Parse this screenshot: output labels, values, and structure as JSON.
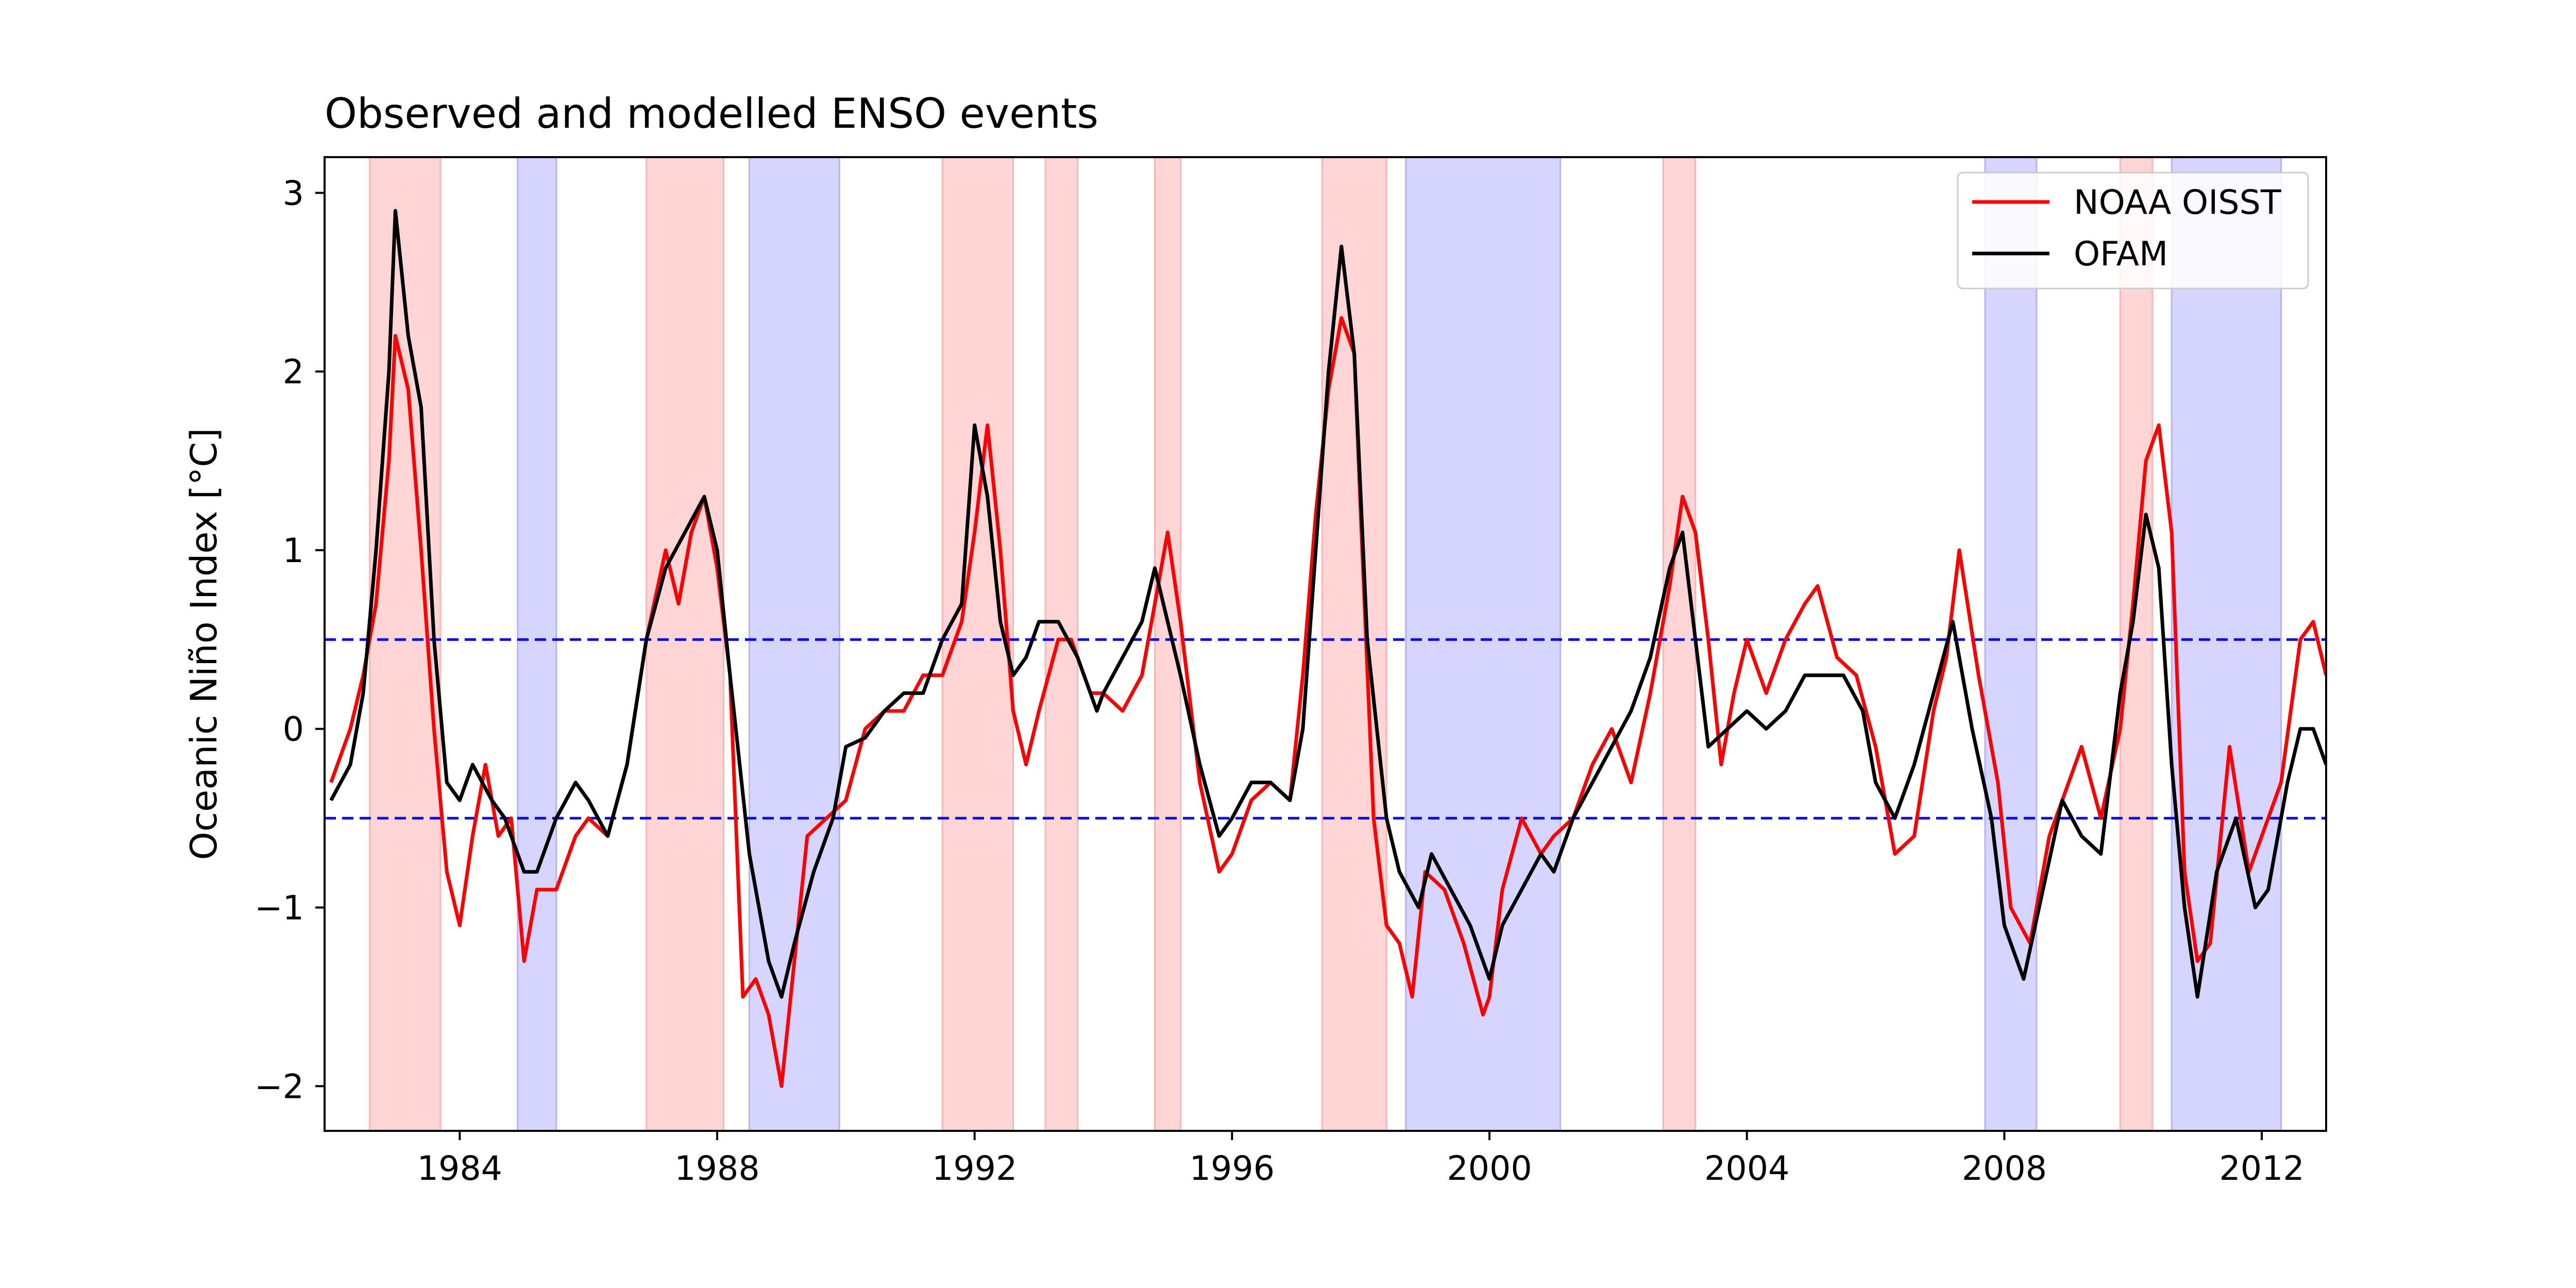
{
  "chart_data": {
    "type": "line",
    "title": "Observed and modelled ENSO events",
    "xlabel": "",
    "ylabel": "Oceanic Niño Index [°C]",
    "xlim": [
      1981.9,
      2013.0
    ],
    "ylim": [
      -2.25,
      3.2
    ],
    "x_ticks": [
      1984,
      1988,
      1992,
      1996,
      2000,
      2004,
      2008,
      2012
    ],
    "x_tick_labels": [
      "1984",
      "1988",
      "1992",
      "1996",
      "2000",
      "2004",
      "2008",
      "2012"
    ],
    "y_ticks": [
      -2,
      -1,
      0,
      1,
      2,
      3
    ],
    "y_tick_labels": [
      "−2",
      "−1",
      "0",
      "1",
      "2",
      "3"
    ],
    "grid": false,
    "legend_position": "top-right",
    "thresholds": [
      {
        "value": 0.5,
        "color": "#0000ff",
        "style": "dashed"
      },
      {
        "value": -0.5,
        "color": "#0000ff",
        "style": "dashed"
      }
    ],
    "el_nino_color": "#ffb3b3",
    "la_nina_color": "#b3b3ff",
    "el_nino_periods": [
      [
        1982.6,
        1983.7
      ],
      [
        1986.9,
        1988.1
      ],
      [
        1991.5,
        1992.6
      ],
      [
        1993.1,
        1993.6
      ],
      [
        1994.8,
        1995.2
      ],
      [
        1997.4,
        1998.4
      ],
      [
        2002.7,
        2003.2
      ],
      [
        2009.8,
        2010.3
      ]
    ],
    "la_nina_periods": [
      [
        1984.9,
        1985.5
      ],
      [
        1988.5,
        1989.9
      ],
      [
        1998.7,
        2001.1
      ],
      [
        2007.7,
        2008.5
      ],
      [
        2010.6,
        2012.3
      ]
    ],
    "series": [
      {
        "name": "NOAA OISST",
        "color": "#ff0000",
        "x": [
          1982.0,
          1982.3,
          1982.5,
          1982.7,
          1982.9,
          1983.0,
          1983.2,
          1983.4,
          1983.6,
          1983.8,
          1984.0,
          1984.2,
          1984.4,
          1984.6,
          1984.8,
          1985.0,
          1985.2,
          1985.5,
          1985.8,
          1986.0,
          1986.3,
          1986.6,
          1986.9,
          1987.2,
          1987.4,
          1987.6,
          1987.8,
          1988.0,
          1988.2,
          1988.4,
          1988.6,
          1988.8,
          1989.0,
          1989.2,
          1989.4,
          1989.7,
          1990.0,
          1990.3,
          1990.6,
          1990.9,
          1991.2,
          1991.5,
          1991.8,
          1992.0,
          1992.2,
          1992.4,
          1992.6,
          1992.8,
          1993.0,
          1993.3,
          1993.5,
          1993.8,
          1994.0,
          1994.3,
          1994.6,
          1994.8,
          1995.0,
          1995.2,
          1995.5,
          1995.8,
          1996.0,
          1996.3,
          1996.6,
          1996.9,
          1997.1,
          1997.3,
          1997.5,
          1997.7,
          1997.9,
          1998.0,
          1998.2,
          1998.4,
          1998.6,
          1998.8,
          1999.0,
          1999.3,
          1999.6,
          1999.9,
          2000.0,
          2000.2,
          2000.5,
          2000.8,
          2001.0,
          2001.3,
          2001.6,
          2001.9,
          2002.2,
          2002.5,
          2002.8,
          2003.0,
          2003.2,
          2003.4,
          2003.6,
          2003.8,
          2004.0,
          2004.3,
          2004.6,
          2004.9,
          2005.1,
          2005.4,
          2005.7,
          2006.0,
          2006.3,
          2006.6,
          2006.9,
          2007.1,
          2007.3,
          2007.6,
          2007.9,
          2008.1,
          2008.4,
          2008.7,
          2009.0,
          2009.2,
          2009.5,
          2009.8,
          2010.0,
          2010.2,
          2010.4,
          2010.6,
          2010.8,
          2011.0,
          2011.2,
          2011.5,
          2011.8,
          2012.0,
          2012.3,
          2012.6,
          2012.8,
          2013.0
        ],
        "y": [
          -0.3,
          0.0,
          0.3,
          0.7,
          1.5,
          2.2,
          1.9,
          1.0,
          0.0,
          -0.8,
          -1.1,
          -0.6,
          -0.2,
          -0.6,
          -0.5,
          -1.3,
          -0.9,
          -0.9,
          -0.6,
          -0.5,
          -0.6,
          -0.2,
          0.5,
          1.0,
          0.7,
          1.1,
          1.3,
          0.9,
          0.3,
          -1.5,
          -1.4,
          -1.6,
          -2.0,
          -1.3,
          -0.6,
          -0.5,
          -0.4,
          0.0,
          0.1,
          0.1,
          0.3,
          0.3,
          0.6,
          1.1,
          1.7,
          1.0,
          0.1,
          -0.2,
          0.1,
          0.5,
          0.5,
          0.2,
          0.2,
          0.1,
          0.3,
          0.7,
          1.1,
          0.6,
          -0.3,
          -0.8,
          -0.7,
          -0.4,
          -0.3,
          -0.4,
          0.3,
          1.2,
          1.9,
          2.3,
          2.1,
          1.2,
          -0.5,
          -1.1,
          -1.2,
          -1.5,
          -0.8,
          -0.9,
          -1.2,
          -1.6,
          -1.5,
          -0.9,
          -0.5,
          -0.7,
          -0.6,
          -0.5,
          -0.2,
          0.0,
          -0.3,
          0.2,
          0.8,
          1.3,
          1.1,
          0.5,
          -0.2,
          0.2,
          0.5,
          0.2,
          0.5,
          0.7,
          0.8,
          0.4,
          0.3,
          -0.1,
          -0.7,
          -0.6,
          0.1,
          0.4,
          1.0,
          0.3,
          -0.3,
          -1.0,
          -1.2,
          -0.6,
          -0.3,
          -0.1,
          -0.5,
          0.0,
          0.7,
          1.5,
          1.7,
          1.1,
          -0.8,
          -1.3,
          -1.2,
          -0.1,
          -0.8,
          -0.6,
          -0.3,
          0.5,
          0.6,
          0.3
        ]
      },
      {
        "name": "OFAM",
        "color": "#000000",
        "x": [
          1982.0,
          1982.3,
          1982.5,
          1982.7,
          1982.9,
          1983.0,
          1983.2,
          1983.4,
          1983.6,
          1983.8,
          1984.0,
          1984.2,
          1984.5,
          1984.7,
          1985.0,
          1985.2,
          1985.5,
          1985.8,
          1986.0,
          1986.3,
          1986.6,
          1986.9,
          1987.2,
          1987.5,
          1987.8,
          1988.0,
          1988.2,
          1988.5,
          1988.8,
          1989.0,
          1989.2,
          1989.5,
          1989.8,
          1990.0,
          1990.3,
          1990.6,
          1990.9,
          1991.2,
          1991.5,
          1991.8,
          1992.0,
          1992.2,
          1992.4,
          1992.6,
          1992.8,
          1993.0,
          1993.3,
          1993.6,
          1993.9,
          1994.0,
          1994.3,
          1994.6,
          1994.8,
          1995.0,
          1995.2,
          1995.5,
          1995.8,
          1996.0,
          1996.3,
          1996.6,
          1996.9,
          1997.1,
          1997.3,
          1997.5,
          1997.7,
          1997.9,
          1998.1,
          1998.4,
          1998.6,
          1998.9,
          1999.1,
          1999.4,
          1999.7,
          2000.0,
          2000.2,
          2000.5,
          2000.8,
          2001.0,
          2001.3,
          2001.6,
          2001.9,
          2002.2,
          2002.5,
          2002.8,
          2003.0,
          2003.2,
          2003.4,
          2003.7,
          2004.0,
          2004.3,
          2004.6,
          2004.9,
          2005.2,
          2005.5,
          2005.8,
          2006.0,
          2006.3,
          2006.6,
          2006.9,
          2007.2,
          2007.5,
          2007.8,
          2008.0,
          2008.3,
          2008.6,
          2008.9,
          2009.2,
          2009.5,
          2009.8,
          2010.0,
          2010.2,
          2010.4,
          2010.6,
          2010.8,
          2011.0,
          2011.3,
          2011.6,
          2011.9,
          2012.1,
          2012.4,
          2012.6,
          2012.8,
          2013.0
        ],
        "y": [
          -0.4,
          -0.2,
          0.2,
          1.0,
          2.0,
          2.9,
          2.2,
          1.8,
          0.5,
          -0.3,
          -0.4,
          -0.2,
          -0.4,
          -0.5,
          -0.8,
          -0.8,
          -0.5,
          -0.3,
          -0.4,
          -0.6,
          -0.2,
          0.5,
          0.9,
          1.1,
          1.3,
          1.0,
          0.3,
          -0.7,
          -1.3,
          -1.5,
          -1.2,
          -0.8,
          -0.5,
          -0.1,
          -0.05,
          0.1,
          0.2,
          0.2,
          0.5,
          0.7,
          1.7,
          1.3,
          0.6,
          0.3,
          0.4,
          0.6,
          0.6,
          0.4,
          0.1,
          0.2,
          0.4,
          0.6,
          0.9,
          0.6,
          0.3,
          -0.2,
          -0.6,
          -0.5,
          -0.3,
          -0.3,
          -0.4,
          0.0,
          1.0,
          2.0,
          2.7,
          2.1,
          0.5,
          -0.5,
          -0.8,
          -1.0,
          -0.7,
          -0.9,
          -1.1,
          -1.4,
          -1.1,
          -0.9,
          -0.7,
          -0.8,
          -0.5,
          -0.3,
          -0.1,
          0.1,
          0.4,
          0.9,
          1.1,
          0.5,
          -0.1,
          0.0,
          0.1,
          0.0,
          0.1,
          0.3,
          0.3,
          0.3,
          0.1,
          -0.3,
          -0.5,
          -0.2,
          0.2,
          0.6,
          0.0,
          -0.5,
          -1.1,
          -1.4,
          -0.9,
          -0.4,
          -0.6,
          -0.7,
          0.2,
          0.6,
          1.2,
          0.9,
          -0.2,
          -1.0,
          -1.5,
          -0.8,
          -0.5,
          -1.0,
          -0.9,
          -0.3,
          0.0,
          0.0,
          -0.2
        ]
      }
    ]
  }
}
